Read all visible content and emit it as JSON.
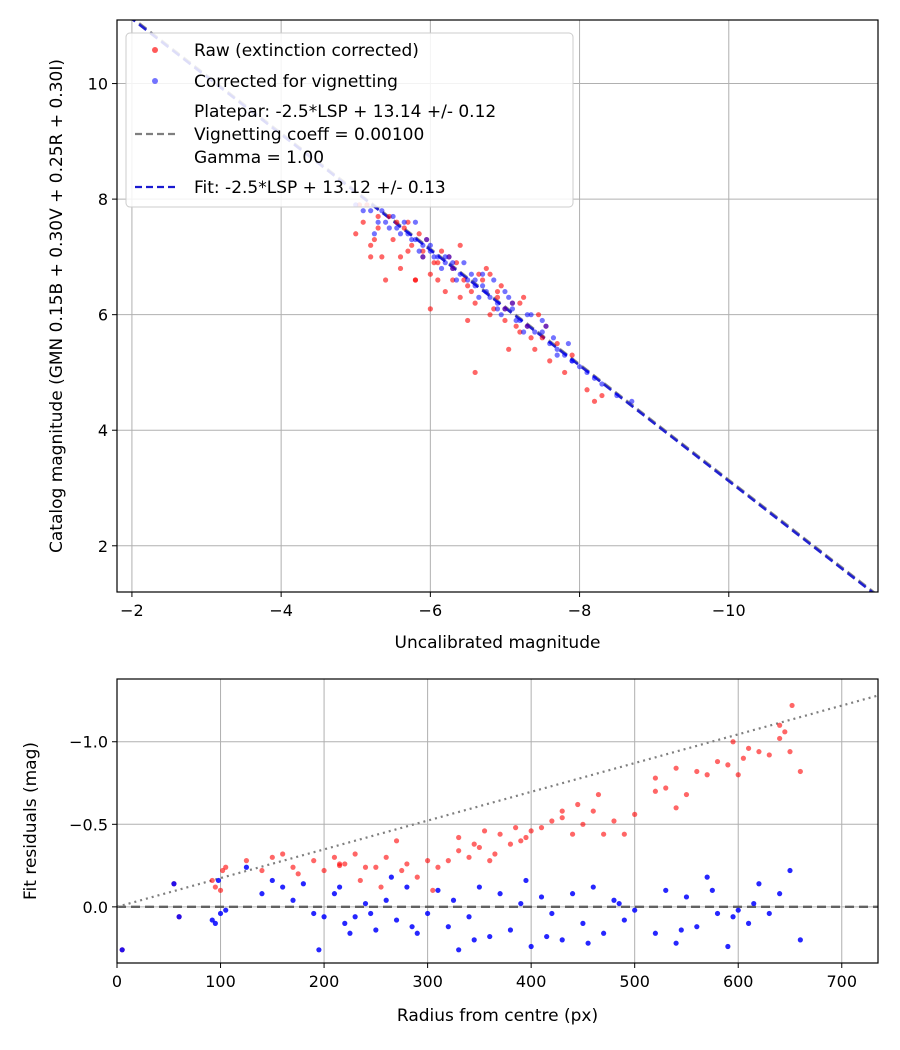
{
  "chart_data": [
    {
      "type": "scatter",
      "title": "",
      "xlabel": "Uncalibrated magnitude",
      "ylabel": "Catalog magnitude (GMN 0.15B + 0.30V + 0.25R + 0.30I)",
      "xlim": [
        -1.8,
        -12.0
      ],
      "ylim": [
        11.1,
        1.2
      ],
      "xticks": [
        -2,
        -4,
        -6,
        -8,
        -10
      ],
      "xtick_labels": [
        "−2",
        "−4",
        "−6",
        "−8",
        "−10"
      ],
      "yticks": [
        2,
        4,
        6,
        8,
        10
      ],
      "ytick_labels": [
        "2",
        "4",
        "6",
        "8",
        "10"
      ],
      "grid": true,
      "legend_position": "top-left",
      "legend": {
        "raw": "Raw (extinction corrected)",
        "corrected": "Corrected for vignetting",
        "platepar_lines": [
          "Platepar: -2.5*LSP + 13.14 +/- 0.12",
          "Vignetting coeff = 0.00100",
          "Gamma = 1.00"
        ],
        "fit": "Fit: -2.5*LSP + 13.12 +/- 0.13"
      },
      "lines": [
        {
          "name": "Platepar",
          "slope": 1.0,
          "intercept": 13.14,
          "color": "#7f7f7f",
          "style": "dashed"
        },
        {
          "name": "Fit",
          "slope": 1.0,
          "intercept": 13.12,
          "color": "#1a1ad0",
          "style": "dashed"
        }
      ],
      "series": [
        {
          "name": "Raw (extinction corrected)",
          "color": "#ff0000",
          "x": [
            -5.0,
            -5.1,
            -5.2,
            -5.3,
            -5.35,
            -5.5,
            -5.6,
            -5.7,
            -5.8,
            -5.9,
            -6.0,
            -6.1,
            -6.2,
            -6.3,
            -6.4,
            -6.5,
            -6.6,
            -6.7,
            -6.8,
            -6.9,
            -7.0,
            -7.1,
            -7.2,
            -7.3,
            -7.4,
            -7.5,
            -7.6,
            -7.8,
            -7.9,
            -8.1,
            -8.2,
            -8.3,
            -5.15,
            -5.25,
            -5.45,
            -5.65,
            -5.75,
            -5.95,
            -6.05,
            -6.25,
            -6.45,
            -6.55,
            -6.75,
            -6.85,
            -6.95,
            -7.05,
            -7.15,
            -5.05,
            -5.55,
            -5.85,
            -6.15,
            -6.35,
            -6.65,
            -6.9,
            -7.25,
            -7.45,
            -5.4,
            -5.8,
            -6.1,
            -6.6,
            -7.0,
            -7.35,
            -7.55,
            -7.7,
            -5.2,
            -5.6,
            -5.9,
            -6.3,
            -6.4,
            -6.8,
            -7.2,
            -5.3,
            -5.7,
            -6.0,
            -6.5
          ],
          "y": [
            7.4,
            7.6,
            7.2,
            7.5,
            7.0,
            7.3,
            6.8,
            7.1,
            6.6,
            7.0,
            6.7,
            6.9,
            6.4,
            6.6,
            6.3,
            6.5,
            6.2,
            6.6,
            6.0,
            6.3,
            5.9,
            6.2,
            5.7,
            5.8,
            5.4,
            5.6,
            5.2,
            5.0,
            5.3,
            4.7,
            4.5,
            4.6,
            7.9,
            7.3,
            7.7,
            7.5,
            7.2,
            7.3,
            6.9,
            7.0,
            6.6,
            6.4,
            6.8,
            6.1,
            6.5,
            5.4,
            5.8,
            7.9,
            7.6,
            7.4,
            7.1,
            6.9,
            6.7,
            6.4,
            6.3,
            6.0,
            6.6,
            6.6,
            6.6,
            5.0,
            6.1,
            5.6,
            5.8,
            5.5,
            7.0,
            7.0,
            7.1,
            6.8,
            7.2,
            6.7,
            6.2,
            7.7,
            7.6,
            6.1,
            5.9
          ]
        },
        {
          "name": "Corrected for vignetting",
          "color": "#0000ff",
          "x": [
            -5.0,
            -5.2,
            -5.4,
            -5.5,
            -5.6,
            -5.7,
            -5.8,
            -5.9,
            -6.0,
            -6.1,
            -6.2,
            -6.3,
            -6.4,
            -6.5,
            -6.6,
            -6.7,
            -6.8,
            -6.9,
            -7.0,
            -7.1,
            -7.2,
            -7.3,
            -7.4,
            -7.5,
            -7.6,
            -7.7,
            -7.8,
            -7.9,
            -8.0,
            -8.1,
            -8.3,
            -8.5,
            -8.7,
            -5.1,
            -5.3,
            -5.45,
            -5.65,
            -5.75,
            -5.85,
            -5.95,
            -6.05,
            -6.15,
            -6.25,
            -6.35,
            -6.45,
            -6.55,
            -6.65,
            -6.75,
            -6.85,
            -6.95,
            -7.05,
            -7.15,
            -7.25,
            -7.35,
            -7.55,
            -7.65,
            -7.85,
            -8.2,
            -5.35,
            -5.55,
            -5.8,
            -6.0,
            -6.3,
            -6.6,
            -6.9,
            -7.1,
            -7.3,
            -7.5,
            -7.9,
            -5.25,
            -5.9,
            -6.2,
            -6.7,
            -7.0,
            -7.7
          ],
          "y": [
            7.9,
            7.8,
            7.6,
            7.7,
            7.4,
            7.4,
            7.3,
            7.2,
            7.1,
            7.0,
            6.9,
            6.8,
            6.7,
            6.6,
            6.6,
            6.5,
            6.3,
            6.2,
            6.1,
            6.1,
            5.9,
            5.8,
            5.7,
            5.7,
            5.5,
            5.4,
            5.3,
            5.2,
            5.1,
            5.0,
            4.8,
            4.6,
            4.5,
            7.8,
            7.6,
            7.5,
            7.6,
            7.3,
            7.1,
            7.3,
            7.0,
            6.8,
            7.0,
            6.6,
            6.9,
            6.7,
            6.3,
            6.4,
            6.6,
            6.0,
            6.3,
            5.9,
            5.7,
            6.0,
            5.8,
            5.6,
            5.5,
            4.9,
            7.8,
            7.5,
            7.6,
            7.2,
            6.9,
            6.5,
            6.1,
            6.2,
            6.0,
            5.9,
            5.2,
            7.4,
            7.0,
            7.0,
            6.7,
            6.4,
            5.3
          ]
        }
      ]
    },
    {
      "type": "scatter",
      "title": "",
      "xlabel": "Radius from centre (px)",
      "ylabel": "Fit residuals (mag)",
      "xlim": [
        0,
        735
      ],
      "ylim": [
        -1.38,
        0.34
      ],
      "xticks": [
        0,
        100,
        200,
        300,
        400,
        500,
        600,
        700
      ],
      "xtick_labels": [
        "0",
        "100",
        "200",
        "300",
        "400",
        "500",
        "600",
        "700"
      ],
      "yticks": [
        0.0,
        -0.5,
        -1.0
      ],
      "ytick_labels": [
        "0.0",
        "−0.5",
        "−1.0"
      ],
      "grid": true,
      "reference_lines": [
        {
          "name": "zero",
          "type": "horizontal",
          "y": 0.0,
          "color": "#555555",
          "style": "dashed"
        },
        {
          "name": "vignetting model",
          "type": "linear",
          "x0": 0,
          "y0": 0.0,
          "x1": 735,
          "y1": -1.28,
          "color": "#7f7f7f",
          "style": "dotted"
        }
      ],
      "series": [
        {
          "name": "Raw residuals",
          "color": "#ff0000",
          "x": [
            5,
            55,
            60,
            92,
            95,
            100,
            102,
            105,
            125,
            140,
            150,
            160,
            170,
            175,
            190,
            200,
            210,
            215,
            220,
            230,
            240,
            250,
            260,
            270,
            280,
            290,
            300,
            310,
            320,
            330,
            340,
            350,
            360,
            370,
            380,
            390,
            400,
            410,
            420,
            430,
            440,
            450,
            460,
            470,
            480,
            490,
            500,
            520,
            530,
            540,
            550,
            560,
            570,
            580,
            590,
            600,
            610,
            620,
            630,
            640,
            645,
            650,
            660,
            330,
            345,
            355,
            365,
            385,
            395,
            430,
            445,
            465,
            520,
            540,
            595,
            605,
            640,
            652,
            215,
            235,
            255,
            275,
            305
          ],
          "y": [
            0.26,
            -0.14,
            0.06,
            -0.16,
            -0.12,
            -0.1,
            -0.22,
            -0.24,
            -0.28,
            -0.22,
            -0.3,
            -0.32,
            -0.24,
            -0.2,
            -0.28,
            -0.22,
            -0.3,
            -0.25,
            -0.26,
            -0.32,
            -0.24,
            -0.24,
            -0.3,
            -0.4,
            -0.26,
            -0.18,
            -0.28,
            -0.24,
            -0.28,
            -0.34,
            -0.3,
            -0.36,
            -0.28,
            -0.44,
            -0.38,
            -0.4,
            -0.46,
            -0.48,
            -0.52,
            -0.54,
            -0.44,
            -0.5,
            -0.58,
            -0.44,
            -0.52,
            -0.44,
            -0.56,
            -0.7,
            -0.72,
            -0.6,
            -0.68,
            -0.82,
            -0.8,
            -0.88,
            -0.86,
            -0.8,
            -0.96,
            -0.94,
            -0.92,
            -1.02,
            -1.06,
            -0.94,
            -0.82,
            -0.42,
            -0.38,
            -0.46,
            -0.32,
            -0.48,
            -0.42,
            -0.58,
            -0.62,
            -0.68,
            -0.78,
            -0.84,
            -1.0,
            -0.9,
            -1.1,
            -1.22,
            -0.26,
            -0.16,
            -0.12,
            -0.22,
            -0.1
          ]
        },
        {
          "name": "Corrected residuals",
          "color": "#0000ff",
          "x": [
            5,
            55,
            60,
            92,
            95,
            98,
            100,
            105,
            125,
            140,
            150,
            160,
            170,
            180,
            190,
            195,
            200,
            210,
            215,
            220,
            230,
            240,
            250,
            260,
            270,
            280,
            290,
            300,
            310,
            320,
            330,
            340,
            350,
            360,
            370,
            380,
            390,
            400,
            410,
            420,
            430,
            440,
            450,
            460,
            470,
            480,
            490,
            500,
            520,
            530,
            540,
            550,
            560,
            570,
            580,
            590,
            600,
            610,
            620,
            630,
            640,
            650,
            660,
            225,
            245,
            265,
            285,
            325,
            345,
            395,
            415,
            455,
            485,
            545,
            575,
            595,
            615
          ],
          "y": [
            0.26,
            -0.14,
            0.06,
            0.08,
            0.1,
            -0.16,
            0.04,
            0.02,
            -0.24,
            -0.08,
            -0.16,
            -0.12,
            -0.04,
            -0.14,
            0.04,
            0.26,
            0.06,
            -0.08,
            -0.12,
            0.1,
            0.06,
            -0.02,
            0.14,
            -0.04,
            0.08,
            -0.12,
            0.16,
            0.04,
            -0.1,
            0.12,
            0.26,
            0.06,
            -0.12,
            0.18,
            -0.08,
            0.14,
            -0.02,
            0.24,
            -0.06,
            0.04,
            0.2,
            -0.08,
            0.1,
            -0.12,
            0.16,
            -0.04,
            0.08,
            0.02,
            0.16,
            -0.1,
            0.22,
            -0.06,
            0.12,
            -0.18,
            0.04,
            0.24,
            0.02,
            0.1,
            -0.14,
            0.04,
            -0.08,
            -0.22,
            0.2,
            0.16,
            0.04,
            -0.18,
            0.12,
            -0.04,
            0.2,
            -0.16,
            0.18,
            0.22,
            -0.02,
            0.14,
            -0.1,
            0.06,
            -0.02
          ]
        }
      ]
    }
  ]
}
